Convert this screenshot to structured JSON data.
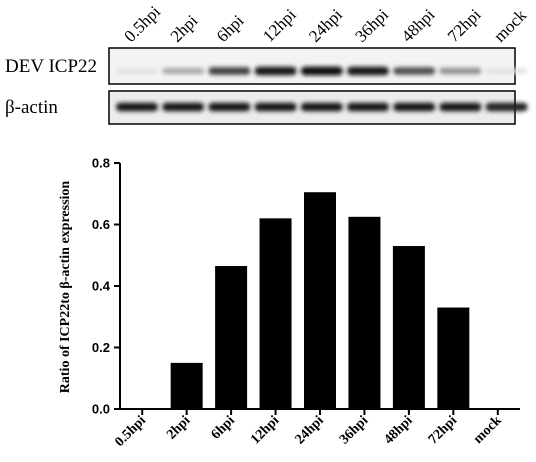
{
  "blot": {
    "lanes": [
      "0.5hpi",
      "2hpi",
      "6hpi",
      "12hpi",
      "24hpi",
      "36hpi",
      "48hpi",
      "72hpi",
      "mock"
    ],
    "rows": [
      {
        "label": "DEV ICP22",
        "intensity": [
          0.05,
          0.3,
          0.75,
          0.95,
          1.0,
          0.95,
          0.7,
          0.4,
          0.05
        ]
      },
      {
        "label": "β-actin",
        "intensity": [
          0.95,
          0.95,
          0.95,
          0.95,
          0.95,
          0.95,
          0.95,
          0.95,
          0.9
        ]
      }
    ]
  },
  "chart_data": {
    "type": "bar",
    "categories": [
      "0.5hpi",
      "2hpi",
      "6hpi",
      "12hpi",
      "24hpi",
      "36hpi",
      "48hpi",
      "72hpi",
      "mock"
    ],
    "values": [
      0,
      0.15,
      0.465,
      0.62,
      0.705,
      0.625,
      0.53,
      0.33,
      0
    ],
    "title": "",
    "xlabel": "",
    "ylabel": "Ratio of ICP22to β-actin expression",
    "ylim": [
      0,
      0.8
    ],
    "yticks": [
      0.0,
      0.2,
      0.4,
      0.6,
      0.8
    ],
    "yticks_labels": [
      "0.0",
      "0.2",
      "0.4",
      "0.6",
      "0.8"
    ],
    "bar_color": "#000000",
    "grid": false,
    "legend": "none"
  }
}
